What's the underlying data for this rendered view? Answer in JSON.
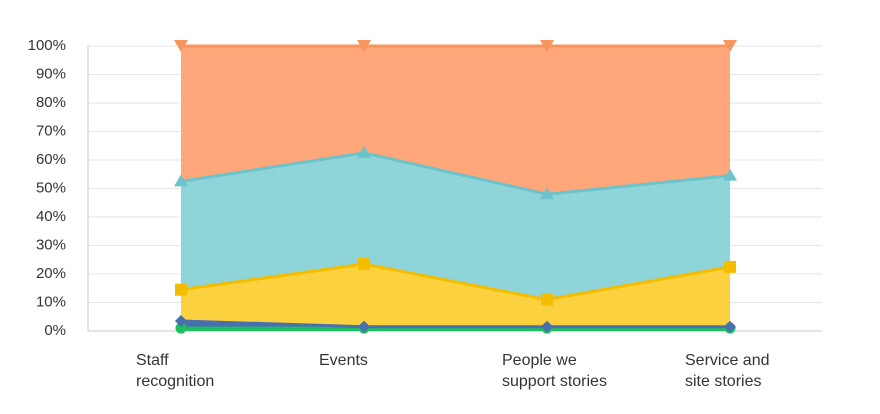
{
  "chart_data": {
    "type": "stacked_area_percent",
    "categories": [
      "Staff\nrecognition",
      "Events",
      "People we\nsupport stories",
      "Service and\nsite stories"
    ],
    "series": [
      {
        "color": "#1fbf5f",
        "fill": "#1fbf5f",
        "marker": "circle",
        "values": [
          1,
          1,
          1,
          1
        ]
      },
      {
        "color": "#4a6fb0",
        "fill": "#4a6fb0",
        "marker": "diamond",
        "values": [
          2.5,
          0.5,
          0.5,
          0.5
        ]
      },
      {
        "color": "#f5bd00",
        "fill": "#fbd13f",
        "marker": "square",
        "values": [
          11,
          22,
          9.5,
          21
        ]
      },
      {
        "color": "#6bc3cb",
        "fill": "#8fd4d9",
        "marker": "triangle-up",
        "values": [
          38,
          39,
          37,
          32
        ]
      },
      {
        "color": "#f7955f",
        "fill": "#ffa67b",
        "marker": "triangle-down",
        "values": [
          47.5,
          37.5,
          52,
          45.5
        ]
      }
    ],
    "ylim": [
      0,
      100
    ],
    "yticks": [
      {
        "value": 0,
        "label": "0%"
      },
      {
        "value": 10,
        "label": "10%"
      },
      {
        "value": 20,
        "label": "20%"
      },
      {
        "value": 30,
        "label": "30%"
      },
      {
        "value": 40,
        "label": "40%"
      },
      {
        "value": 50,
        "label": "50%"
      },
      {
        "value": 60,
        "label": "60%"
      },
      {
        "value": 70,
        "label": "70%"
      },
      {
        "value": 80,
        "label": "80%"
      },
      {
        "value": 90,
        "label": "90%"
      },
      {
        "value": 100,
        "label": "100%"
      }
    ],
    "grid": true
  }
}
